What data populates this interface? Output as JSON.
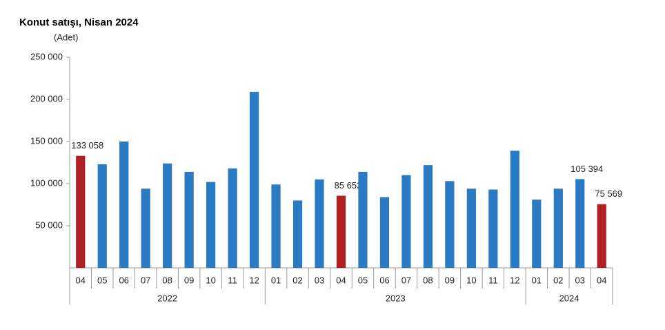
{
  "chart_data": {
    "type": "bar",
    "title": "Konut satışı, Nisan 2024",
    "y_label": "(Adet)",
    "categories": [
      "04",
      "05",
      "06",
      "07",
      "08",
      "09",
      "10",
      "11",
      "12",
      "01",
      "02",
      "03",
      "04",
      "05",
      "06",
      "07",
      "08",
      "09",
      "10",
      "11",
      "12",
      "01",
      "02",
      "03",
      "04"
    ],
    "years": [
      "2022",
      "2022",
      "2022",
      "2022",
      "2022",
      "2022",
      "2022",
      "2022",
      "2022",
      "2023",
      "2023",
      "2023",
      "2023",
      "2023",
      "2023",
      "2023",
      "2023",
      "2023",
      "2023",
      "2023",
      "2023",
      "2024",
      "2024",
      "2024",
      "2024"
    ],
    "values": [
      133058,
      123000,
      150000,
      94000,
      124000,
      114000,
      102000,
      118000,
      209000,
      99000,
      80000,
      105000,
      85652,
      114000,
      84000,
      110000,
      122000,
      103000,
      94000,
      93000,
      139000,
      81000,
      94000,
      105394,
      75569
    ],
    "value_labels": [
      "133 058",
      null,
      null,
      null,
      null,
      null,
      null,
      null,
      null,
      null,
      null,
      null,
      "85 652",
      null,
      null,
      null,
      null,
      null,
      null,
      null,
      null,
      null,
      null,
      "105 394",
      "75 569"
    ],
    "colors": [
      "#b01f24",
      "#2b7bc4",
      "#2b7bc4",
      "#2b7bc4",
      "#2b7bc4",
      "#2b7bc4",
      "#2b7bc4",
      "#2b7bc4",
      "#2b7bc4",
      "#2b7bc4",
      "#2b7bc4",
      "#2b7bc4",
      "#b01f24",
      "#2b7bc4",
      "#2b7bc4",
      "#2b7bc4",
      "#2b7bc4",
      "#2b7bc4",
      "#2b7bc4",
      "#2b7bc4",
      "#2b7bc4",
      "#2b7bc4",
      "#2b7bc4",
      "#2b7bc4",
      "#b01f24"
    ],
    "ylim": [
      0,
      250000
    ],
    "yticks": [
      {
        "value": 50000,
        "label": "50 000"
      },
      {
        "value": 100000,
        "label": "100 000"
      },
      {
        "value": 150000,
        "label": "150 000"
      },
      {
        "value": 200000,
        "label": "200 000"
      },
      {
        "value": 250000,
        "label": "250 000"
      }
    ],
    "grid": false
  }
}
